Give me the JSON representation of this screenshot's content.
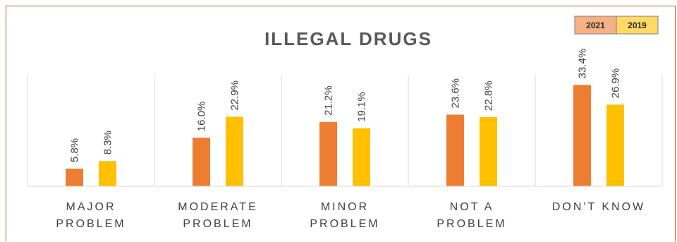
{
  "chart_data": {
    "type": "bar",
    "title": "ILLEGAL DRUGS",
    "categories": [
      [
        "MAJOR",
        "PROBLEM"
      ],
      [
        "MODERATE",
        "PROBLEM"
      ],
      [
        "MINOR",
        "PROBLEM"
      ],
      [
        "NOT A",
        "PROBLEM"
      ],
      [
        "DON'T KNOW"
      ]
    ],
    "series": [
      {
        "name": "2021",
        "color": "#ed7d31",
        "legend_fill": "#f4b183",
        "values": [
          5.8,
          16.0,
          21.2,
          23.6,
          33.4
        ],
        "labels": [
          "5.8%",
          "16.0%",
          "21.2%",
          "23.6%",
          "33.4%"
        ]
      },
      {
        "name": "2019",
        "color": "#ffc000",
        "legend_fill": "#ffd966",
        "values": [
          8.3,
          22.9,
          19.1,
          22.8,
          26.9
        ],
        "labels": [
          "8.3%",
          "22.9%",
          "19.1%",
          "22.8%",
          "26.9%"
        ]
      }
    ],
    "ylim": [
      0,
      40
    ],
    "xlabel": "",
    "ylabel": "",
    "grid": false,
    "legend": "top-right"
  }
}
